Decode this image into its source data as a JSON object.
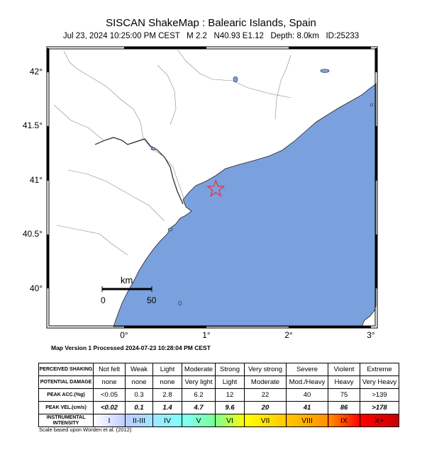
{
  "header": {
    "title": "SISCAN ShakeMap : Balearic Islands, Spain",
    "date": "Jul 23, 2024 10:25:00 PM CEST",
    "magnitude": "M 2.2",
    "location": "N40.93 E1.12",
    "depth": "Depth: 8.0km",
    "id": "ID:25233"
  },
  "map": {
    "lon_range": [
      -0.9,
      3.05
    ],
    "lat_range": [
      39.67,
      42.22
    ],
    "y_ticks": [
      "42°",
      "41.5°",
      "41°",
      "40.5°",
      "40°"
    ],
    "x_ticks": [
      "0°",
      "1°",
      "2°",
      "3°"
    ],
    "sea_color": "#7aa1de",
    "land_color": "#ffffff",
    "epicenter": {
      "lon": 1.12,
      "lat": 40.93,
      "color": "#e8324a"
    },
    "scale_bar": {
      "unit": "km",
      "start": "0",
      "end": "50"
    }
  },
  "version_line": "Map Version 1 Processed 2024-07-23 10:28:04 PM CEST",
  "legend": {
    "rows": [
      {
        "label": "PERCEIVED SHAKING",
        "values": [
          "Not felt",
          "Weak",
          "Light",
          "Moderate",
          "Strong",
          "Very strong",
          "Severe",
          "Violent",
          "Extreme"
        ]
      },
      {
        "label": "POTENTIAL DAMAGE",
        "values": [
          "none",
          "none",
          "none",
          "Very light",
          "Light",
          "Moderate",
          "Mod./Heavy",
          "Heavy",
          "Very Heavy"
        ]
      },
      {
        "label": "PEAK ACC.(%g)",
        "values": [
          "<0.05",
          "0.3",
          "2.8",
          "6.2",
          "12",
          "22",
          "40",
          "75",
          ">139"
        ]
      },
      {
        "label": "PEAK VEL.(cm/s)",
        "values": [
          "<0.02",
          "0.1",
          "1.4",
          "4.7",
          "9.6",
          "20",
          "41",
          "86",
          ">178"
        ]
      },
      {
        "label": "INSTRUMENTAL INTENSITY",
        "values": [
          "I",
          "II-III",
          "IV",
          "V",
          "VI",
          "VII",
          "VIII",
          "IX",
          "X+"
        ]
      }
    ],
    "intensity_colors": [
      "#ffffff",
      "#bfccff",
      "#a0e6ff",
      "#80ffff",
      "#7aff93",
      "#ffff00",
      "#ffc800",
      "#ff9100",
      "#ff0000",
      "#c80000"
    ],
    "scale_note": "Scale based upon Worden et al. (2012)"
  }
}
